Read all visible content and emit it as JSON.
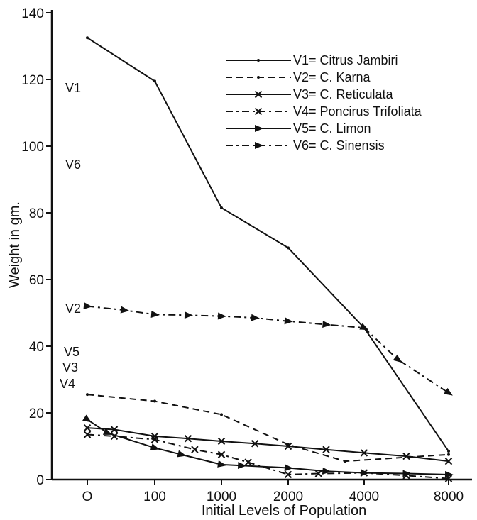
{
  "chart_data": {
    "type": "line",
    "title": "",
    "xlabel": "Initial  Levels of  Population",
    "ylabel": "Weight  in  gm.",
    "categories": [
      "O",
      "100",
      "1000",
      "2000",
      "4000",
      "8000"
    ],
    "y_ticks": [
      "0",
      "20",
      "40",
      "60",
      "80",
      "100",
      "120",
      "140"
    ],
    "ylim": [
      0,
      140
    ],
    "grid": false,
    "legend_position": "top-right",
    "series": [
      {
        "name": "V1= Citrus Jambiri",
        "label": "V1",
        "dash": "solid",
        "marker": "dot",
        "points": [
          [
            0,
            132.5
          ],
          [
            1,
            119.5
          ],
          [
            2,
            81.5
          ],
          [
            3,
            69.5
          ],
          [
            4,
            45.5
          ],
          [
            5,
            8.5
          ]
        ]
      },
      {
        "name": "V2= C. Karna",
        "label": "V2",
        "dash": "dashed",
        "marker": "dot",
        "points": [
          [
            0,
            25.5
          ],
          [
            1,
            23.5
          ],
          [
            2,
            19.5
          ],
          [
            3,
            10.5
          ],
          [
            3.75,
            5.5
          ],
          [
            5,
            7.5
          ]
        ]
      },
      {
        "name": "V3= C. Reticulata",
        "label": "V3",
        "dash": "solid",
        "marker": "x",
        "points": [
          [
            0,
            15.5
          ],
          [
            0.4,
            15
          ],
          [
            1,
            13
          ],
          [
            1.5,
            12.3
          ],
          [
            2,
            11.5
          ],
          [
            2.5,
            10.8
          ],
          [
            3,
            10
          ],
          [
            3.5,
            9
          ],
          [
            4,
            8
          ],
          [
            4.5,
            7
          ],
          [
            5,
            5.5
          ]
        ]
      },
      {
        "name": "V4= Poncirus Trifoliata",
        "label": "V4",
        "dash": "dashdot",
        "marker": "x",
        "points": [
          [
            0,
            13.5
          ],
          [
            0.4,
            13
          ],
          [
            1,
            12
          ],
          [
            1.6,
            9
          ],
          [
            2,
            7.5
          ],
          [
            2.4,
            5.2
          ],
          [
            3,
            1.5
          ],
          [
            3.4,
            1.8
          ],
          [
            4,
            2
          ],
          [
            4.5,
            1.2
          ],
          [
            5,
            0.3
          ]
        ]
      },
      {
        "name": "V5= C. Limon",
        "label": "V5",
        "dash": "solid",
        "marker": "arrow",
        "points": [
          [
            0,
            18
          ],
          [
            0.3,
            14
          ],
          [
            1,
            9.5
          ],
          [
            1.4,
            7.5
          ],
          [
            2,
            4.5
          ],
          [
            2.3,
            4.2
          ],
          [
            3,
            3.5
          ],
          [
            3.5,
            2.5
          ],
          [
            4,
            2
          ],
          [
            4.5,
            1.8
          ],
          [
            5,
            1.5
          ]
        ]
      },
      {
        "name": "V6= C. Sinensis",
        "label": "V6",
        "dash": "dashdot",
        "marker": "arrow",
        "points": [
          [
            0,
            52
          ],
          [
            0.55,
            50.8
          ],
          [
            1,
            49.5
          ],
          [
            1.5,
            49.3
          ],
          [
            2,
            49
          ],
          [
            2.5,
            48.5
          ],
          [
            3,
            47.5
          ],
          [
            3.5,
            46.5
          ],
          [
            4,
            45.5
          ],
          [
            4.4,
            36
          ],
          [
            5,
            26
          ]
        ]
      }
    ]
  },
  "colors": {
    "ink": "#111111",
    "background": "#ffffff"
  }
}
